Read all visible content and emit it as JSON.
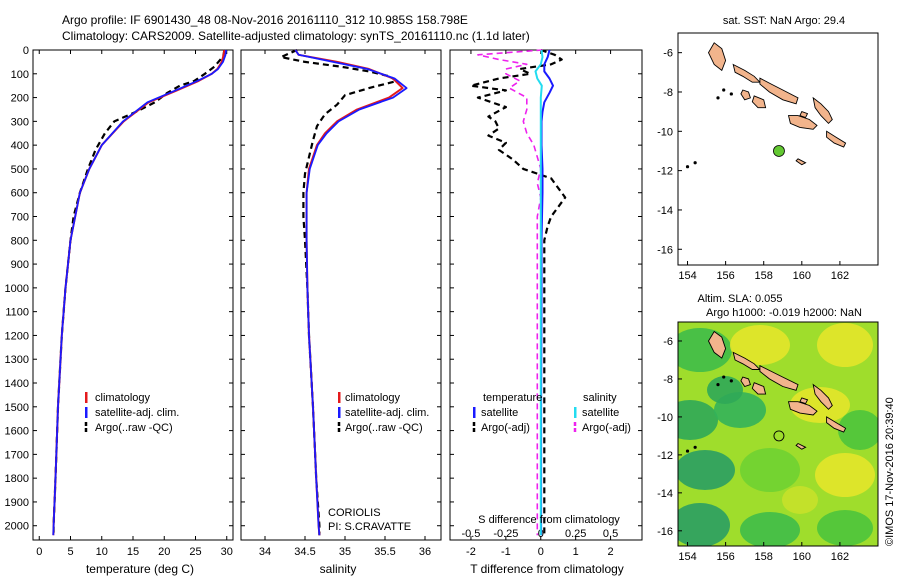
{
  "header": {
    "line1": "Argo profile: IF 6901430_48 08-Nov-2016 20161110_312 10.985S 158.798E",
    "line2": "Climatology: CARS2009. Satellite-adjusted climatology: synTS_20161110.nc (1.1d later)"
  },
  "colors": {
    "climatology": "#e41a1c",
    "satellite": "#1a1aff",
    "argo": "#000000",
    "satellite_sal": "#22dcf0",
    "argo_sal": "#ee22ee",
    "land": "#f2b48c",
    "argo_marker": "#63c832"
  },
  "chart_data": [
    {
      "type": "line",
      "xlabel": "temperature (deg C)",
      "ylabel": "",
      "xlim": [
        -1,
        31
      ],
      "ylim": [
        2060,
        0
      ],
      "y_inverted": true,
      "xticks": [
        0,
        5,
        10,
        15,
        20,
        25,
        30
      ],
      "yticks": [
        0,
        100,
        200,
        300,
        400,
        500,
        600,
        700,
        800,
        900,
        1000,
        1100,
        1200,
        1300,
        1400,
        1500,
        1600,
        1700,
        1800,
        1900,
        2000
      ],
      "legend": [
        "climatology",
        "satellite-adj. clim.",
        "Argo(..raw -QC)"
      ],
      "legend_position": "lower-center",
      "series": [
        {
          "name": "climatology",
          "depth": [
            0,
            20,
            50,
            80,
            100,
            130,
            170,
            220,
            300,
            400,
            500,
            600,
            800,
            1000,
            1200,
            1500,
            1800,
            2000,
            2040
          ],
          "values": [
            29.6,
            29.5,
            29.2,
            28.5,
            27.6,
            25.5,
            22.0,
            17.5,
            13.5,
            10.0,
            8.0,
            6.5,
            5.0,
            4.2,
            3.6,
            3.0,
            2.6,
            2.3,
            2.25
          ]
        },
        {
          "name": "satellite-adj. clim.",
          "depth": [
            0,
            20,
            50,
            80,
            100,
            130,
            170,
            220,
            300,
            400,
            500,
            600,
            800,
            1000,
            1200,
            1500,
            1800,
            2000,
            2040
          ],
          "values": [
            29.9,
            29.8,
            29.4,
            28.6,
            27.6,
            25.3,
            21.8,
            17.3,
            13.4,
            10.0,
            8.0,
            6.5,
            5.0,
            4.2,
            3.6,
            3.0,
            2.6,
            2.3,
            2.25
          ]
        },
        {
          "name": "Argo(..raw -QC)",
          "depth": [
            0,
            20,
            40,
            70,
            100,
            130,
            150,
            180,
            220,
            260,
            300,
            350,
            420,
            500,
            600,
            700,
            800,
            1000,
            1200,
            1500,
            1800,
            2000,
            2040
          ],
          "values": [
            29.6,
            29.5,
            29.0,
            28.0,
            26.5,
            24.8,
            22.5,
            20.5,
            18.5,
            15.5,
            12.0,
            10.5,
            9.0,
            7.8,
            6.5,
            5.5,
            5.0,
            4.2,
            3.6,
            3.0,
            2.6,
            2.3,
            2.3
          ]
        }
      ]
    },
    {
      "type": "line",
      "xlabel": "salinity",
      "xlim": [
        33.7,
        36.2
      ],
      "ylim": [
        2060,
        0
      ],
      "y_inverted": true,
      "xticks": [
        34,
        34.5,
        35,
        35.5,
        36
      ],
      "legend": [
        "climatology",
        "satellite-adj. clim.",
        "Argo(..raw -QC)"
      ],
      "legend_position": "lower-center",
      "annotations": [
        "CORIOLIS",
        "PI: S.CRAVATTE"
      ],
      "series": [
        {
          "name": "climatology",
          "depth": [
            0,
            20,
            50,
            80,
            120,
            160,
            200,
            250,
            300,
            350,
            400,
            500,
            600,
            800,
            1000,
            1200,
            1500,
            1800,
            2000,
            2040
          ],
          "values": [
            34.38,
            34.42,
            34.9,
            35.3,
            35.6,
            35.72,
            35.55,
            35.15,
            34.9,
            34.75,
            34.65,
            34.55,
            34.52,
            34.52,
            34.53,
            34.55,
            34.6,
            34.64,
            34.67,
            34.68
          ]
        },
        {
          "name": "satellite-adj. clim.",
          "depth": [
            0,
            20,
            50,
            80,
            120,
            160,
            200,
            250,
            300,
            350,
            400,
            500,
            600,
            800,
            1000,
            1200,
            1500,
            1800,
            2000,
            2040
          ],
          "values": [
            34.38,
            34.42,
            34.85,
            35.28,
            35.62,
            35.77,
            35.6,
            35.18,
            34.92,
            34.77,
            34.66,
            34.56,
            34.52,
            34.52,
            34.53,
            34.55,
            34.6,
            34.64,
            34.67,
            34.68
          ]
        },
        {
          "name": "Argo(..raw -QC)",
          "depth": [
            0,
            30,
            50,
            70,
            90,
            110,
            130,
            160,
            190,
            230,
            270,
            320,
            380,
            450,
            520,
            600,
            700,
            800,
            1000,
            1200,
            1500,
            1800,
            2000,
            2040
          ],
          "values": [
            34.4,
            34.2,
            34.5,
            34.95,
            35.3,
            35.55,
            35.65,
            35.3,
            35.0,
            34.9,
            34.75,
            34.65,
            34.6,
            34.55,
            34.5,
            34.48,
            34.48,
            34.5,
            34.53,
            34.55,
            34.6,
            34.64,
            34.68,
            34.68
          ]
        }
      ]
    },
    {
      "type": "line",
      "xlabel": "T difference from climatology",
      "xlabel_top": "S difference from climatology",
      "xlim": [
        -2.6,
        2.9
      ],
      "ylim": [
        2060,
        0
      ],
      "y_inverted": true,
      "xticks": [
        -2,
        -1,
        0,
        1,
        2
      ],
      "s_xtick_labels": [
        "-0.5",
        "-0.25",
        "0",
        "0.25",
        "0.5"
      ],
      "s_xtick_positions": [
        -2,
        -1,
        0,
        1,
        2
      ],
      "legend_titles": [
        "temperature",
        "salinity"
      ],
      "legend": [
        "satellite",
        "Argo(-adj)",
        "satellite",
        "Argo(-adj)"
      ],
      "legend_position": "lower-center",
      "series": [
        {
          "name": "satellite",
          "variable": "temperature",
          "depth": [
            0,
            30,
            60,
            90,
            120,
            150,
            180,
            220,
            260,
            300,
            400,
            500,
            600,
            800,
            1000,
            1500,
            2040
          ],
          "values": [
            0.25,
            0.2,
            0.1,
            0.1,
            0.25,
            0.35,
            0.25,
            0.1,
            0.05,
            0.02,
            0.02,
            0.05,
            0.05,
            0.02,
            0.02,
            0.01,
            0.01
          ]
        },
        {
          "name": "Argo(-adj)",
          "variable": "temperature",
          "depth": [
            0,
            20,
            40,
            60,
            80,
            100,
            120,
            150,
            170,
            200,
            240,
            280,
            300,
            330,
            360,
            390,
            420,
            460,
            500,
            540,
            580,
            620,
            660,
            700,
            740,
            800,
            900,
            1000,
            1200,
            1500,
            1700,
            1900,
            2040
          ],
          "values": [
            0.0,
            0.4,
            0.6,
            0.3,
            -0.6,
            -0.3,
            -1.2,
            -2.0,
            -1.0,
            -1.8,
            -1.0,
            -1.5,
            -1.3,
            -1.2,
            -1.5,
            -1.0,
            -1.2,
            -0.8,
            -0.5,
            0.3,
            0.5,
            0.7,
            0.5,
            0.3,
            0.2,
            0.1,
            0.1,
            0.1,
            0.1,
            0.1,
            0.1,
            0.1,
            0.1
          ]
        },
        {
          "name": "satellite",
          "variable": "salinity",
          "depth": [
            0,
            30,
            60,
            90,
            120,
            150,
            200,
            300,
            500,
            800,
            1200,
            1600,
            2040
          ],
          "values": [
            0.02,
            0.05,
            0.0,
            -0.15,
            -0.1,
            0.03,
            0.0,
            0.0,
            0.0,
            0.0,
            0.0,
            0.0,
            0.0
          ]
        },
        {
          "name": "Argo(-adj)",
          "variable": "salinity",
          "depth": [
            0,
            20,
            40,
            60,
            80,
            100,
            130,
            160,
            200,
            250,
            300,
            350,
            400,
            450,
            500,
            560,
            620,
            700,
            800,
            900,
            1000,
            1200,
            1500,
            1800,
            2040
          ],
          "values": [
            0.05,
            -1.8,
            -1.2,
            -0.4,
            -1.0,
            -1.0,
            -0.6,
            -0.9,
            -0.4,
            -0.4,
            -0.5,
            -0.4,
            -0.2,
            -0.1,
            0.0,
            -0.1,
            0.0,
            -0.1,
            -0.1,
            -0.1,
            -0.1,
            -0.1,
            -0.1,
            -0.1,
            -0.1
          ]
        }
      ]
    }
  ],
  "map_top": {
    "title": "sat. SST: NaN Argo: 29.4",
    "xticks": [
      "154",
      "156",
      "158",
      "160",
      "162"
    ],
    "yticks": [
      "-6",
      "-8",
      "-10",
      "-12",
      "-14",
      "-16"
    ],
    "lon_range": [
      153.5,
      164.0
    ],
    "lat_range": [
      -16.8,
      -5.0
    ],
    "argo_lon": 158.8,
    "argo_lat": -11.0
  },
  "map_bottom": {
    "title1": "Altim. SLA: 0.055",
    "title2": "Argo h1000: -0.019 h2000: NaN",
    "xticks": [
      "154",
      "156",
      "158",
      "160",
      "162"
    ],
    "yticks": [
      "-6",
      "-8",
      "-10",
      "-12",
      "-14",
      "-16"
    ],
    "lon_range": [
      153.5,
      164.0
    ],
    "lat_range": [
      -16.8,
      -5.0
    ],
    "argo_lon": 158.8,
    "argo_lat": -11.0
  },
  "footer": {
    "side_credit": "©IMOS 17-Nov-2016 20:39:40"
  }
}
